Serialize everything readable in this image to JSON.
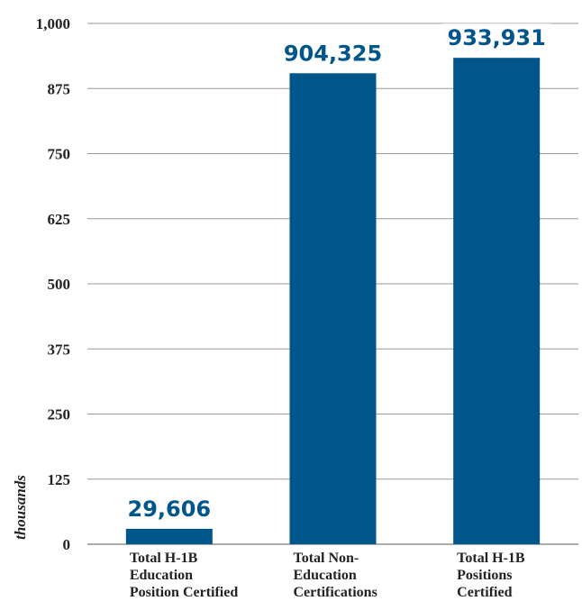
{
  "chart_data": {
    "type": "bar",
    "categories": [
      [
        "Total H-1B",
        "Education",
        "Position Certified"
      ],
      [
        "Total Non-",
        "Education",
        "Certifications"
      ],
      [
        "Total H-1B",
        "Positions",
        "Certified"
      ]
    ],
    "values": [
      29.606,
      904.325,
      933.931
    ],
    "data_labels": [
      "29,606",
      "904,325",
      "933,931"
    ],
    "ylabel": "thousands",
    "ylim": [
      0,
      1000
    ],
    "yticks": [
      0,
      125,
      250,
      375,
      500,
      625,
      750,
      875,
      1000
    ],
    "ytick_labels": [
      "0",
      "125",
      "250",
      "375",
      "500",
      "625",
      "750",
      "875",
      "1,000"
    ],
    "grid": true,
    "colors": {
      "bar": "#00558a",
      "data_label": "#00558a"
    }
  }
}
